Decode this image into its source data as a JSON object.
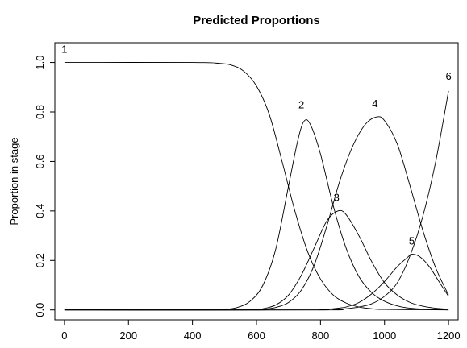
{
  "chart_data": {
    "type": "line",
    "title": "Predicted Proportions",
    "xlabel": "",
    "ylabel": "Proportion in stage",
    "xlim": [
      -30,
      1230
    ],
    "ylim": [
      -0.04,
      1.08
    ],
    "x_ticks": [
      0,
      200,
      400,
      600,
      800,
      1000,
      1200
    ],
    "y_ticks": [
      0.0,
      0.2,
      0.4,
      0.6,
      0.8,
      1.0
    ],
    "y_tick_labels": [
      "0.0",
      "0.2",
      "0.4",
      "0.6",
      "0.8",
      "1.0"
    ],
    "grid": false,
    "legend": "none",
    "series": [
      {
        "label": "1",
        "label_pos": [
          0,
          1.04
        ],
        "points": [
          [
            0,
            1.0
          ],
          [
            400,
            1.0
          ],
          [
            480,
            0.997
          ],
          [
            520,
            0.99
          ],
          [
            560,
            0.965
          ],
          [
            600,
            0.905
          ],
          [
            640,
            0.79
          ],
          [
            680,
            0.6
          ],
          [
            720,
            0.4
          ],
          [
            760,
            0.235
          ],
          [
            800,
            0.125
          ],
          [
            840,
            0.06
          ],
          [
            880,
            0.028
          ],
          [
            920,
            0.012
          ],
          [
            960,
            0.005
          ],
          [
            1000,
            0.002
          ],
          [
            1200,
            0.0
          ]
        ]
      },
      {
        "label": "2",
        "label_pos": [
          740,
          0.815
        ],
        "points": [
          [
            0,
            0.0
          ],
          [
            460,
            0.0
          ],
          [
            500,
            0.002
          ],
          [
            540,
            0.01
          ],
          [
            580,
            0.035
          ],
          [
            620,
            0.1
          ],
          [
            660,
            0.245
          ],
          [
            700,
            0.5
          ],
          [
            730,
            0.69
          ],
          [
            750,
            0.765
          ],
          [
            770,
            0.745
          ],
          [
            800,
            0.63
          ],
          [
            840,
            0.42
          ],
          [
            880,
            0.25
          ],
          [
            920,
            0.135
          ],
          [
            960,
            0.07
          ],
          [
            1000,
            0.035
          ],
          [
            1050,
            0.013
          ],
          [
            1100,
            0.005
          ],
          [
            1200,
            0.0
          ]
        ]
      },
      {
        "label": "3",
        "label_pos": [
          850,
          0.44
        ],
        "points": [
          [
            0,
            0.0
          ],
          [
            580,
            0.0
          ],
          [
            620,
            0.005
          ],
          [
            660,
            0.02
          ],
          [
            700,
            0.06
          ],
          [
            740,
            0.14
          ],
          [
            780,
            0.25
          ],
          [
            820,
            0.36
          ],
          [
            855,
            0.4
          ],
          [
            880,
            0.385
          ],
          [
            920,
            0.3
          ],
          [
            960,
            0.195
          ],
          [
            1000,
            0.11
          ],
          [
            1040,
            0.06
          ],
          [
            1080,
            0.03
          ],
          [
            1120,
            0.015
          ],
          [
            1160,
            0.007
          ],
          [
            1200,
            0.003
          ]
        ]
      },
      {
        "label": "4",
        "label_pos": [
          970,
          0.82
        ],
        "points": [
          [
            0,
            0.0
          ],
          [
            580,
            0.0
          ],
          [
            620,
            0.003
          ],
          [
            660,
            0.01
          ],
          [
            700,
            0.03
          ],
          [
            740,
            0.08
          ],
          [
            780,
            0.18
          ],
          [
            820,
            0.34
          ],
          [
            860,
            0.52
          ],
          [
            900,
            0.66
          ],
          [
            940,
            0.75
          ],
          [
            975,
            0.78
          ],
          [
            1000,
            0.765
          ],
          [
            1040,
            0.67
          ],
          [
            1080,
            0.5
          ],
          [
            1120,
            0.32
          ],
          [
            1160,
            0.17
          ],
          [
            1200,
            0.06
          ]
        ]
      },
      {
        "label": "5",
        "label_pos": [
          1085,
          0.265
        ],
        "points": [
          [
            0,
            0.0
          ],
          [
            760,
            0.0
          ],
          [
            800,
            0.002
          ],
          [
            840,
            0.005
          ],
          [
            880,
            0.012
          ],
          [
            920,
            0.03
          ],
          [
            960,
            0.065
          ],
          [
            1000,
            0.115
          ],
          [
            1040,
            0.175
          ],
          [
            1070,
            0.21
          ],
          [
            1085,
            0.225
          ],
          [
            1110,
            0.215
          ],
          [
            1140,
            0.175
          ],
          [
            1170,
            0.115
          ],
          [
            1200,
            0.055
          ]
        ]
      },
      {
        "label": "6",
        "label_pos": [
          1200,
          0.93
        ],
        "points": [
          [
            0,
            0.0
          ],
          [
            800,
            0.0
          ],
          [
            840,
            0.002
          ],
          [
            880,
            0.005
          ],
          [
            920,
            0.012
          ],
          [
            960,
            0.025
          ],
          [
            1000,
            0.055
          ],
          [
            1040,
            0.11
          ],
          [
            1080,
            0.22
          ],
          [
            1120,
            0.38
          ],
          [
            1160,
            0.6
          ],
          [
            1200,
            0.885
          ]
        ]
      }
    ]
  }
}
